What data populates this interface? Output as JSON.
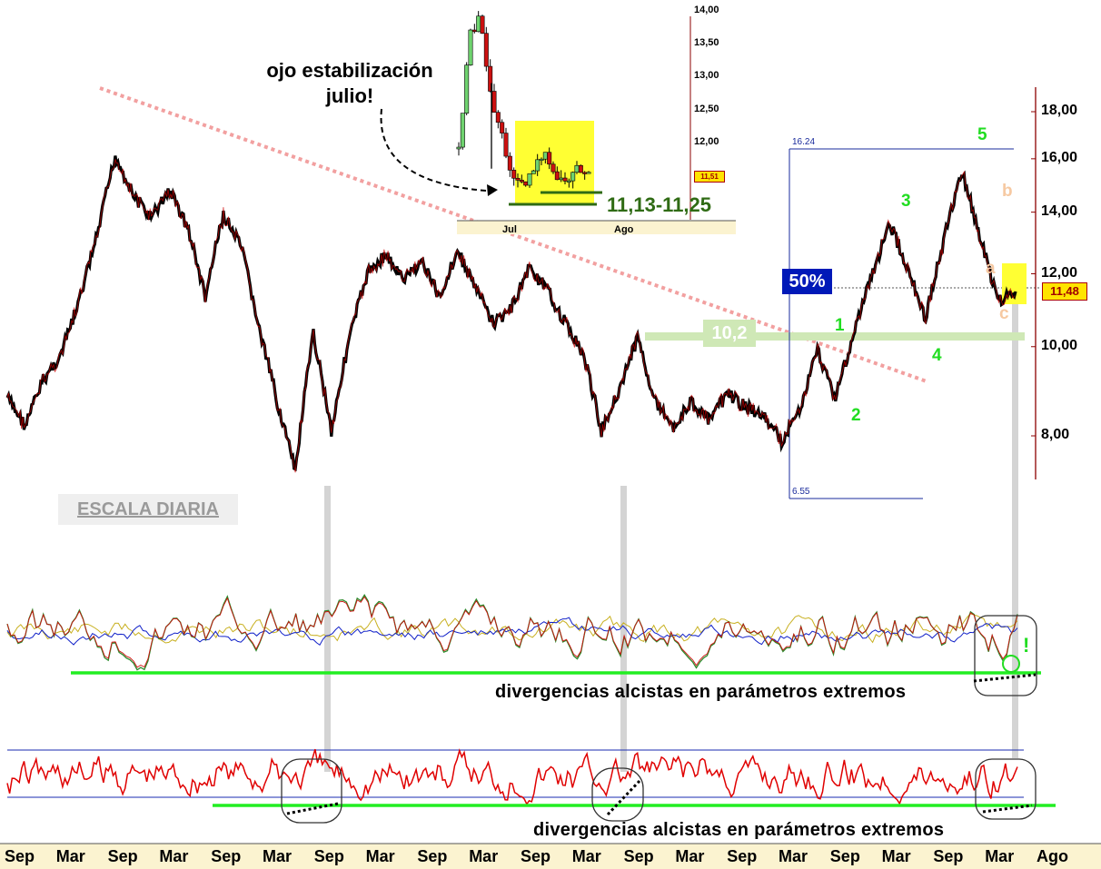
{
  "chart_data": [
    {
      "type": "line",
      "title": "",
      "series": [
        {
          "values": [
            8.8,
            8.2,
            9.2,
            9.8,
            11.2,
            13.2,
            16.1,
            14.6,
            13.8,
            14.8,
            13.5,
            11.3,
            13.9,
            12.8,
            10.4,
            8.7,
            7.3,
            10.3,
            8.1,
            10.2,
            12.0,
            12.6,
            11.8,
            12.4,
            11.3,
            12.7,
            11.6,
            10.6,
            11.0,
            12.2,
            11.5,
            10.6,
            9.8,
            8.1,
            9.0,
            10.2,
            8.7,
            8.2,
            8.7,
            8.3,
            8.9,
            8.6,
            8.4,
            7.9,
            8.5,
            9.9,
            8.8,
            10.3,
            11.9,
            13.6,
            12.2,
            10.7,
            13.0,
            15.5,
            13.2,
            11.2,
            11.48
          ]
        }
      ],
      "y_ticks": [
        "18,00",
        "16,00",
        "14,00",
        "12,00",
        "10,00",
        "8,00"
      ],
      "x_ticks": [
        "Sep",
        "Mar",
        "Sep",
        "Mar",
        "Sep",
        "Mar",
        "Sep",
        "Mar",
        "Sep",
        "Mar",
        "Sep",
        "Mar",
        "Sep",
        "Mar",
        "Sep",
        "Mar",
        "Sep",
        "Mar",
        "Sep",
        "Mar",
        "Ago"
      ],
      "last_price": "11,48",
      "fib_high": "16.24",
      "fib_low": "6.55",
      "fib_level_label": "50%",
      "support_zone": "10,2",
      "wave_labels": [
        "1",
        "2",
        "3",
        "4",
        "5"
      ],
      "correction_labels": [
        "a",
        "b",
        "c"
      ]
    },
    {
      "type": "line",
      "series": [
        {
          "values": [
            11.9,
            13.6,
            13.9,
            12.6,
            12.1,
            11.4,
            11.3,
            11.6,
            11.9,
            11.45,
            11.4,
            11.6,
            11.51
          ]
        }
      ],
      "y_ticks": [
        "14,00",
        "13,50",
        "13,00",
        "12,50",
        "12,00"
      ],
      "x_ticks": [
        "Jul",
        "Ago"
      ],
      "last_price": "11,51",
      "range_label": "11,13-11,25"
    }
  ],
  "annotations": {
    "note": "ojo estabilización julio!",
    "scale": "ESCALA DIARIA",
    "divergence_1": "divergencias alcistas en parámetros extremos",
    "divergence_2": "divergencias alcistas en parámetros extremos",
    "exclaim": "!"
  },
  "colors": {
    "price": "#000000",
    "candle_red": "#cc0000",
    "trendline": "#f2a0a0",
    "support": "#cfe8b6",
    "fib": "#1a2b9c",
    "wave_green": "#22dd22",
    "correction": "#f6c9a2",
    "highlight": "#ffff33",
    "osc1_green": "#2b8a2b",
    "osc1_red": "#d01010",
    "osc1_yellow": "#c8b020",
    "osc1_blue": "#1020c8",
    "osc2_red": "#e00000",
    "osc2_band": "#1a2bb0",
    "div_line": "#22ee22",
    "axis_bg": "#fbf3d0"
  }
}
